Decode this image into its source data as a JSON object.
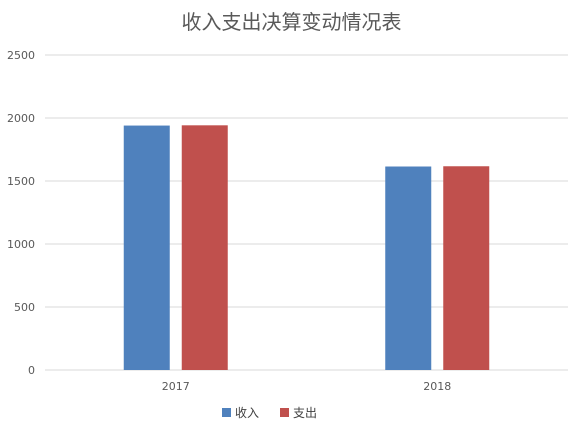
{
  "chart_data": {
    "type": "bar",
    "title": "收入支出决算变动情况表",
    "xlabel": "",
    "ylabel": "",
    "categories": [
      "2017",
      "2018"
    ],
    "series": [
      {
        "name": "收入",
        "values": [
          1940,
          1615
        ],
        "color": "#4f81bd"
      },
      {
        "name": "支出",
        "values": [
          1942,
          1617
        ],
        "color": "#c0504d"
      }
    ],
    "ylim": [
      0,
      2500
    ],
    "yticks": [
      "0",
      "500",
      "1000",
      "1500",
      "2000",
      "2500"
    ],
    "grid": true,
    "legend_position": "bottom"
  }
}
